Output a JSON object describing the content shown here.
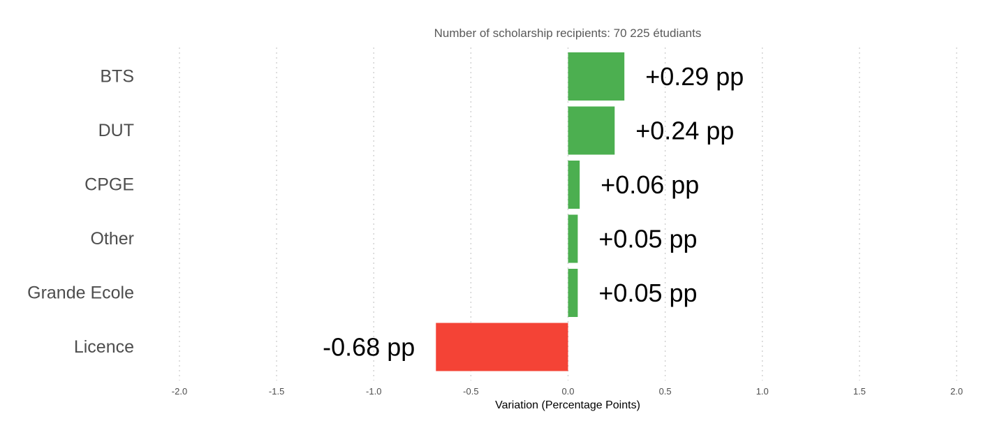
{
  "chart_data": {
    "type": "bar",
    "orientation": "horizontal",
    "subtitle": "Number of scholarship recipients: 70 225 étudiants",
    "xlabel": "Variation (Percentage Points)",
    "ylabel": "",
    "xlim": [
      -2.0,
      2.0
    ],
    "xticks": [
      -2.0,
      -1.5,
      -1.0,
      -0.5,
      0.0,
      0.5,
      1.0,
      1.5,
      2.0
    ],
    "xtick_labels": [
      "-2.0",
      "-1.5",
      "-1.0",
      "-0.5",
      "0.0",
      "0.5",
      "1.0",
      "1.5",
      "2.0"
    ],
    "grid": "vertical dotted",
    "legend": "none",
    "categories": [
      "BTS",
      "DUT",
      "CPGE",
      "Other",
      "Grande Ecole",
      "Licence"
    ],
    "values": [
      0.29,
      0.24,
      0.06,
      0.05,
      0.05,
      -0.68
    ],
    "data_labels": [
      "+0.29 pp",
      "+0.24 pp",
      "+0.06 pp",
      "+0.05 pp",
      "+0.05 pp",
      "-0.68 pp"
    ],
    "colors": {
      "positive": "#4caf50",
      "negative": "#f44336"
    }
  }
}
